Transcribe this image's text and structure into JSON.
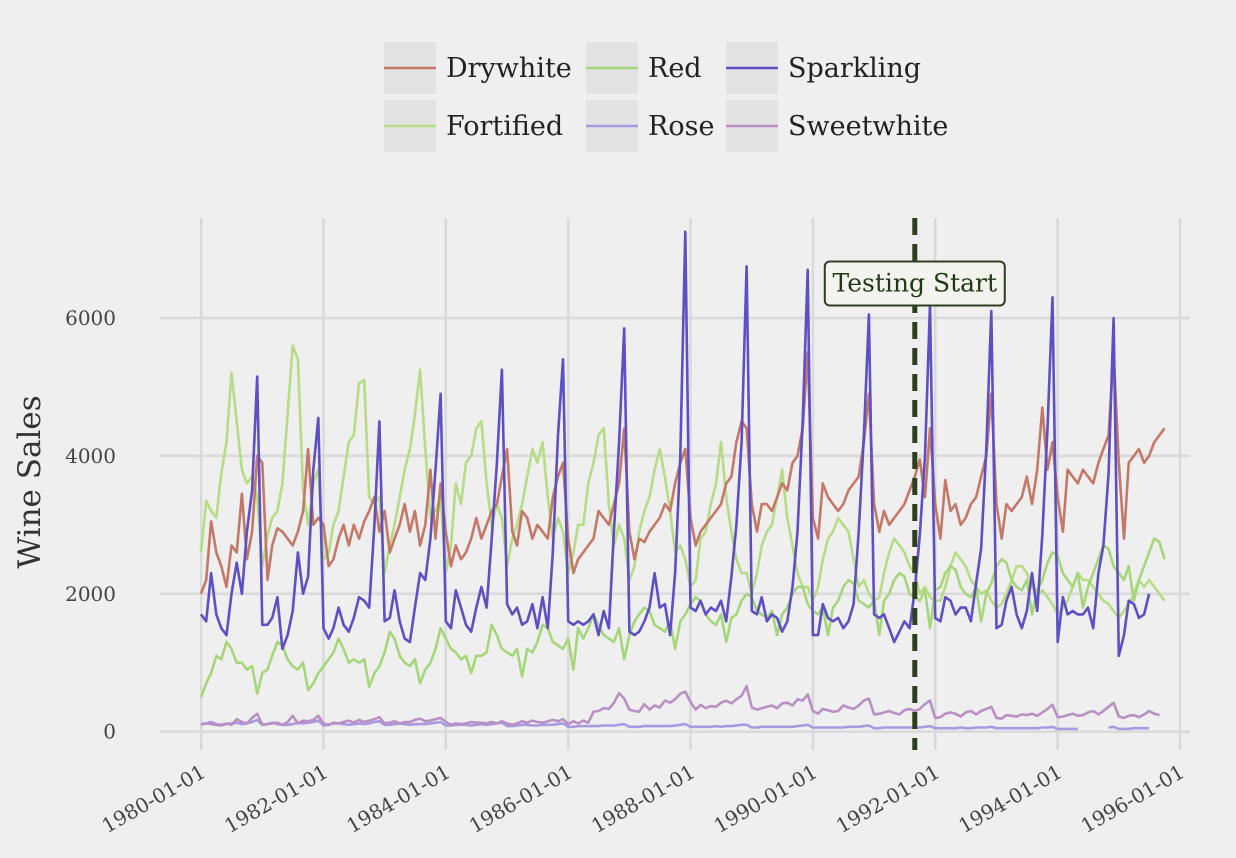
{
  "chart_data": {
    "type": "line",
    "ylabel": "Wine Sales",
    "xlabel": "",
    "xlim": [
      "1979-05-01",
      "1996-03-01"
    ],
    "ylim": [
      -150,
      7450
    ],
    "x_ticks": [
      "1980-01-01",
      "1982-01-01",
      "1984-01-01",
      "1986-01-01",
      "1988-01-01",
      "1990-01-01",
      "1992-01-01",
      "1994-01-01",
      "1996-01-01"
    ],
    "y_ticks": [
      0,
      2000,
      4000,
      6000
    ],
    "grid": true,
    "legend_position": "top",
    "legend_order": [
      "Drywhite",
      "Red",
      "Sparkling",
      "Fortified",
      "Rose",
      "Sweetwhite"
    ],
    "annotation": {
      "label": "Testing Start",
      "date": "1991-09-01",
      "label_y": 6500,
      "line_color": "#2d3f20"
    },
    "start_date": "1980-01-01",
    "frequency": "monthly",
    "series": [
      {
        "name": "Drywhite",
        "color": "#c47868",
        "values": [
          2000,
          2200,
          3050,
          2600,
          2400,
          2100,
          2700,
          2600,
          3450,
          2500,
          2900,
          4000,
          3900,
          2200,
          2700,
          2950,
          2900,
          2800,
          2700,
          2900,
          3200,
          4100,
          3000,
          3100,
          3000,
          2400,
          2500,
          2800,
          3000,
          2700,
          3000,
          2800,
          3050,
          3200,
          3400,
          2900,
          3200,
          2600,
          2800,
          3000,
          3300,
          2900,
          3200,
          2700,
          3000,
          3800,
          2800,
          3600,
          2900,
          2400,
          2700,
          2500,
          2600,
          2800,
          3100,
          2800,
          3000,
          3200,
          3300,
          3700,
          4100,
          2900,
          2700,
          3200,
          3100,
          2800,
          3000,
          2900,
          2800,
          3400,
          3700,
          3900,
          2800,
          2300,
          2500,
          2600,
          2700,
          2800,
          3200,
          3100,
          3000,
          3300,
          3600,
          4400,
          2900,
          2500,
          2800,
          2750,
          2900,
          3000,
          3100,
          3300,
          3200,
          3600,
          3900,
          4100,
          3100,
          2700,
          2900,
          3000,
          3100,
          3200,
          3300,
          3600,
          3700,
          4200,
          4500,
          4400,
          3300,
          2900,
          3300,
          3300,
          3200,
          3400,
          3600,
          3500,
          3900,
          4000,
          4400,
          5500,
          3100,
          2800,
          3600,
          3400,
          3300,
          3200,
          3300,
          3500,
          3600,
          3700,
          4200,
          4900,
          3300,
          2900,
          3200,
          3000,
          3100,
          3200,
          3300,
          3500,
          3700,
          3950,
          3400,
          4400,
          3300,
          2800,
          3650,
          3200,
          3300,
          3000,
          3100,
          3300,
          3400,
          3700,
          4000,
          4900,
          3300,
          2800,
          3300,
          3200,
          3300,
          3400,
          3700,
          3300,
          3800,
          4700,
          3800,
          4200,
          3400,
          2900,
          3800,
          3700,
          3600,
          3800,
          3700,
          3600,
          3900,
          4100,
          4300,
          5500,
          3900,
          2800,
          3900,
          4000,
          4100,
          3900,
          4000,
          4200,
          4300,
          4400
        ]
      },
      {
        "name": "Red",
        "color": "#a6d67a",
        "values": [
          500,
          700,
          850,
          1100,
          1050,
          1300,
          1200,
          1000,
          1000,
          900,
          950,
          550,
          850,
          900,
          1100,
          1300,
          1250,
          1050,
          950,
          900,
          1000,
          600,
          700,
          850,
          950,
          1050,
          1150,
          1350,
          1200,
          1000,
          1050,
          1000,
          1050,
          650,
          850,
          950,
          1150,
          1450,
          1350,
          1100,
          1000,
          950,
          1050,
          700,
          900,
          1000,
          1200,
          1500,
          1350,
          1200,
          1150,
          1050,
          1100,
          850,
          1100,
          1100,
          1150,
          1550,
          1400,
          1200,
          1150,
          1100,
          1200,
          800,
          1200,
          1150,
          1300,
          1550,
          1500,
          1300,
          1250,
          1200,
          1350,
          900,
          1500,
          1350,
          1500,
          1700,
          1550,
          1400,
          1350,
          1300,
          1500,
          1050,
          1400,
          1600,
          1700,
          1800,
          1750,
          1550,
          1500,
          1450,
          1600,
          1200,
          1600,
          1700,
          1850,
          1950,
          1900,
          1700,
          1600,
          1550,
          1700,
          1300,
          1650,
          1700,
          1900,
          2000,
          1950,
          1750,
          1700,
          1650,
          1750,
          1400,
          1700,
          1800,
          2000,
          2100,
          2100,
          1850,
          1750,
          1700,
          1800,
          1400,
          1800,
          1900,
          2100,
          2200,
          2150,
          1900,
          1850,
          1800,
          1900,
          1400,
          1900,
          2000,
          2200,
          2300,
          2250,
          2000,
          1950,
          1900,
          2050,
          1500,
          2050,
          2100,
          2300,
          2400,
          2350,
          2100,
          2000,
          1950,
          2100,
          1600,
          2000,
          2150,
          2400,
          2500,
          2450,
          2200,
          2100,
          2050,
          2200,
          1700,
          2050,
          2200,
          2450,
          2600,
          2550,
          2300,
          2200,
          2100,
          2300,
          1800,
          2100,
          2300,
          2500,
          2700,
          2650,
          2400,
          2300,
          2200,
          2400,
          1900,
          2200,
          2400,
          2600,
          2800,
          2750,
          2500
        ]
      },
      {
        "name": "Sparkling",
        "color": "#5e4fc4",
        "values": [
          1700,
          1600,
          2300,
          1700,
          1500,
          1400,
          2000,
          2450,
          2000,
          2900,
          3500,
          5150,
          1550,
          1550,
          1650,
          1950,
          1200,
          1400,
          1750,
          2600,
          2000,
          2250,
          3800,
          4550,
          1500,
          1350,
          1500,
          1800,
          1550,
          1450,
          1650,
          1950,
          1900,
          1800,
          3000,
          4500,
          1600,
          1650,
          2050,
          1600,
          1350,
          1300,
          1800,
          2300,
          2200,
          2800,
          3800,
          4900,
          1600,
          1500,
          2050,
          1800,
          1550,
          1450,
          1800,
          2100,
          1800,
          2800,
          3900,
          5250,
          1850,
          1700,
          1800,
          1550,
          1600,
          1850,
          1500,
          1950,
          1500,
          2600,
          4300,
          5400,
          1600,
          1550,
          1600,
          1550,
          1600,
          1700,
          1400,
          1750,
          1500,
          2900,
          4200,
          5850,
          1450,
          1400,
          1450,
          1600,
          1800,
          2300,
          1800,
          1850,
          1400,
          2300,
          4000,
          7250,
          1800,
          1750,
          1900,
          1700,
          1800,
          1750,
          1900,
          1600,
          2250,
          3000,
          4200,
          6750,
          1750,
          1700,
          1950,
          1600,
          1700,
          1650,
          1450,
          1600,
          2100,
          2900,
          4500,
          6700,
          1400,
          1400,
          1850,
          1650,
          1600,
          1650,
          1500,
          1600,
          1850,
          2900,
          4300,
          6050,
          1700,
          1650,
          1700,
          1500,
          1300,
          1450,
          1600,
          1500,
          2050,
          2850,
          4000,
          6200,
          1650,
          1600,
          1950,
          1900,
          1700,
          1800,
          1800,
          1600,
          2150,
          2650,
          4100,
          6100,
          1500,
          1550,
          1900,
          2100,
          1700,
          1500,
          1750,
          2300,
          1750,
          2850,
          4400,
          6300,
          1300,
          1950,
          1700,
          1750,
          1700,
          1700,
          1800,
          1500,
          2300,
          2700,
          3750,
          6000,
          1100,
          1400,
          1900,
          1850,
          1650,
          1700,
          2000
        ]
      },
      {
        "name": "Fortified",
        "color": "#b6dc86",
        "values": [
          2600,
          3350,
          3200,
          3100,
          3750,
          4200,
          5200,
          4500,
          3800,
          3600,
          3700,
          3400,
          2400,
          2850,
          3100,
          3200,
          3600,
          4600,
          5600,
          5400,
          3500,
          3000,
          3600,
          3800,
          2500,
          2600,
          3000,
          3200,
          3700,
          4200,
          4300,
          5050,
          5100,
          3400,
          3300,
          3400,
          2300,
          2700,
          3000,
          3400,
          3800,
          4100,
          4600,
          5250,
          4100,
          3100,
          3200,
          3400,
          2300,
          2700,
          3600,
          3300,
          3900,
          4000,
          4400,
          4500,
          3600,
          3000,
          3300,
          3100,
          2400,
          2800,
          3000,
          3300,
          3700,
          4100,
          3900,
          4200,
          3400,
          2800,
          3100,
          2900,
          2300,
          2600,
          3000,
          3000,
          3600,
          3900,
          4300,
          4400,
          3300,
          2700,
          3000,
          2800,
          2200,
          2400,
          2900,
          3200,
          3400,
          3800,
          4100,
          3700,
          3200,
          2600,
          2700,
          2500,
          2100,
          2200,
          2800,
          2900,
          3300,
          3600,
          4200,
          3400,
          2900,
          2500,
          2300,
          2300,
          2000,
          2300,
          2700,
          2900,
          3000,
          3400,
          3800,
          3100,
          2700,
          2300,
          2100,
          2100,
          1900,
          2100,
          2500,
          2800,
          2900,
          3100,
          3000,
          2900,
          2500,
          2100,
          2200,
          2000,
          1900,
          1950,
          2300,
          2600,
          2800,
          2700,
          2600,
          2400,
          2300,
          2000,
          2100,
          1950,
          1900,
          1900,
          2100,
          2400,
          2600,
          2500,
          2400,
          2200,
          2100,
          2000,
          2050,
          1900,
          1800,
          1850,
          2000,
          2200,
          2400,
          2400,
          2300,
          2100,
          2000,
          2050,
          1950,
          1850,
          1700,
          1800,
          1900,
          2100,
          2300,
          2200,
          2200,
          2100,
          2000,
          1900,
          1850,
          1750,
          1650,
          1750,
          1850,
          2000,
          2200,
          2100,
          2200,
          2100,
          2000,
          1900
        ]
      },
      {
        "name": "Rose",
        "color": "#a89ae0",
        "values": [
          110,
          120,
          140,
          110,
          100,
          110,
          120,
          130,
          110,
          120,
          140,
          170,
          100,
          110,
          130,
          110,
          100,
          100,
          110,
          130,
          120,
          130,
          140,
          160,
          90,
          100,
          120,
          120,
          110,
          100,
          110,
          120,
          110,
          120,
          140,
          150,
          100,
          100,
          110,
          120,
          110,
          100,
          110,
          110,
          110,
          120,
          130,
          140,
          90,
          90,
          100,
          100,
          100,
          90,
          100,
          110,
          100,
          110,
          120,
          130,
          80,
          80,
          90,
          100,
          100,
          90,
          90,
          100,
          100,
          100,
          110,
          120,
          70,
          70,
          80,
          80,
          80,
          80,
          80,
          90,
          90,
          90,
          100,
          110,
          70,
          70,
          70,
          80,
          80,
          80,
          80,
          80,
          80,
          90,
          100,
          110,
          70,
          70,
          70,
          70,
          70,
          80,
          70,
          80,
          80,
          90,
          100,
          100,
          60,
          60,
          70,
          70,
          70,
          70,
          70,
          70,
          70,
          80,
          90,
          100,
          60,
          60,
          60,
          60,
          60,
          60,
          60,
          70,
          70,
          70,
          80,
          90,
          50,
          50,
          60,
          60,
          60,
          60,
          60,
          60,
          60,
          60,
          70,
          80,
          50,
          50,
          50,
          50,
          50,
          60,
          50,
          50,
          60,
          60,
          60,
          70,
          50,
          50,
          50,
          50,
          50,
          50,
          50,
          50,
          50,
          60,
          60,
          70,
          40,
          40,
          40,
          40,
          40,
          null,
          null,
          null,
          null,
          null,
          60,
          70,
          40,
          40,
          40,
          50,
          50,
          50,
          50
        ]
      },
      {
        "name": "Sweetwhite",
        "color": "#b890c4",
        "values": [
          100,
          120,
          110,
          100,
          90,
          120,
          100,
          180,
          140,
          120,
          200,
          260,
          100,
          110,
          120,
          130,
          100,
          140,
          230,
          120,
          160,
          150,
          170,
          230,
          120,
          100,
          130,
          120,
          140,
          160,
          130,
          170,
          140,
          160,
          180,
          210,
          120,
          130,
          150,
          120,
          140,
          140,
          170,
          190,
          150,
          160,
          180,
          200,
          140,
          100,
          120,
          110,
          120,
          140,
          130,
          130,
          120,
          140,
          120,
          150,
          120,
          100,
          120,
          150,
          130,
          160,
          140,
          130,
          150,
          170,
          150,
          180,
          110,
          150,
          120,
          160,
          130,
          290,
          300,
          340,
          330,
          420,
          560,
          480,
          320,
          300,
          290,
          400,
          320,
          380,
          350,
          450,
          420,
          470,
          550,
          580,
          430,
          320,
          390,
          340,
          370,
          360,
          420,
          450,
          410,
          470,
          520,
          660,
          350,
          320,
          340,
          360,
          380,
          340,
          410,
          420,
          380,
          470,
          450,
          540,
          300,
          260,
          330,
          310,
          290,
          300,
          380,
          350,
          330,
          380,
          450,
          480,
          250,
          260,
          280,
          300,
          270,
          250,
          310,
          330,
          300,
          330,
          400,
          450,
          200,
          210,
          260,
          280,
          260,
          220,
          280,
          300,
          250,
          300,
          330,
          360,
          200,
          190,
          240,
          230,
          220,
          250,
          240,
          260,
          230,
          280,
          330,
          390,
          210,
          220,
          240,
          260,
          230,
          240,
          280,
          300,
          250,
          300,
          360,
          420,
          220,
          200,
          230,
          240,
          210,
          250,
          300,
          260,
          240
        ]
      }
    ]
  }
}
